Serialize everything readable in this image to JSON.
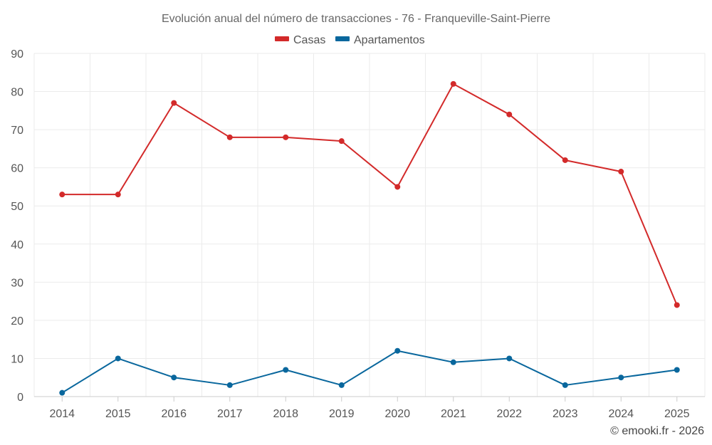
{
  "chart_data": {
    "type": "line",
    "title": "Evolución anual del número de transacciones - 76 - Franqueville-Saint-Pierre",
    "categories": [
      "2014",
      "2015",
      "2016",
      "2017",
      "2018",
      "2019",
      "2020",
      "2021",
      "2022",
      "2023",
      "2024",
      "2025"
    ],
    "series": [
      {
        "name": "Casas",
        "color": "#d32a2a",
        "values": [
          53,
          53,
          77,
          68,
          68,
          67,
          55,
          82,
          74,
          62,
          59,
          24
        ]
      },
      {
        "name": "Apartamentos",
        "color": "#09679d",
        "values": [
          1,
          10,
          5,
          3,
          7,
          3,
          12,
          9,
          10,
          3,
          5,
          7
        ]
      }
    ],
    "ylim": [
      0,
      90
    ],
    "yticks": [
      0,
      10,
      20,
      30,
      40,
      50,
      60,
      70,
      80,
      90
    ],
    "xlabel": "",
    "ylabel": "",
    "grid": true,
    "legend": "top-center"
  },
  "credit": "© emooki.fr - 2026"
}
